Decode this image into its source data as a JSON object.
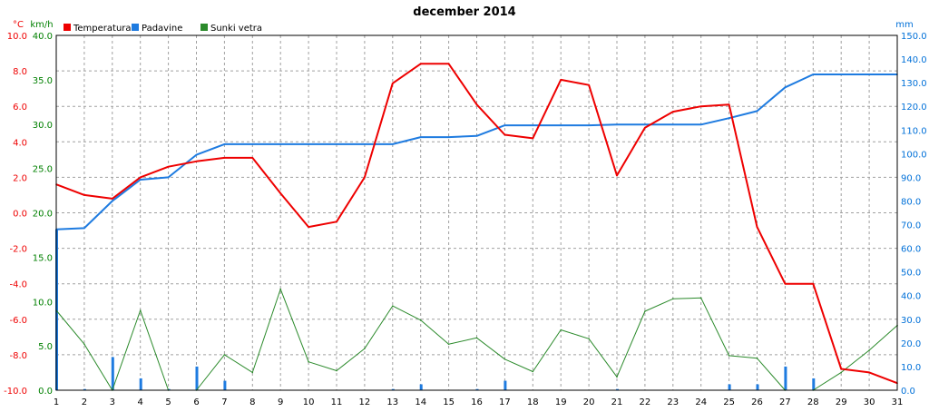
{
  "chart_data": {
    "type": "line",
    "title": "december 2014",
    "x": [
      1,
      2,
      3,
      4,
      5,
      6,
      7,
      8,
      9,
      10,
      11,
      12,
      13,
      14,
      15,
      16,
      17,
      18,
      19,
      20,
      21,
      22,
      23,
      24,
      25,
      26,
      27,
      28,
      29,
      30,
      31
    ],
    "axes": {
      "temperature": {
        "unit": "°C",
        "ylim": [
          -10,
          10
        ],
        "ticks": [
          "10.0",
          "8.0",
          "6.0",
          "4.0",
          "2.0",
          "0.0",
          "-2.0",
          "-4.0",
          "-6.0",
          "-8.0",
          "-10.0"
        ],
        "color": "#ee0000"
      },
      "wind": {
        "unit": "km/h",
        "ylim": [
          0,
          40
        ],
        "ticks": [
          "40.0",
          "35.0",
          "30.0",
          "25.0",
          "20.0",
          "15.0",
          "10.0",
          "5.0",
          "0.0"
        ],
        "color": "#008000"
      },
      "precipitation": {
        "unit": "mm",
        "ylim": [
          0,
          150
        ],
        "ticks": [
          "150.0",
          "140.0",
          "130.0",
          "120.0",
          "110.0",
          "100.0",
          "90.0",
          "80.0",
          "70.0",
          "60.0",
          "50.0",
          "40.0",
          "30.0",
          "20.0",
          "10.0",
          "0.0"
        ],
        "color": "#0070d8"
      }
    },
    "legend": [
      {
        "name": "Temperatura",
        "color": "#ee0000"
      },
      {
        "name": "Padavine",
        "color": "#1e7be0"
      },
      {
        "name": "Sunki vetra",
        "color": "#2b8a2b"
      }
    ],
    "series": [
      {
        "name": "Temperatura",
        "axis": "temperature",
        "color": "#ee0000",
        "values": [
          1.6,
          1.0,
          0.8,
          2.0,
          2.6,
          2.9,
          3.1,
          3.1,
          1.1,
          -0.8,
          -0.5,
          2.0,
          7.3,
          8.4,
          8.4,
          6.1,
          4.4,
          4.2,
          7.5,
          7.2,
          2.1,
          4.8,
          5.7,
          6.0,
          6.1,
          -0.8,
          -4.0,
          -4.0,
          -8.8,
          -9.0,
          -9.6
        ]
      },
      {
        "name": "Padavine",
        "axis": "precipitation",
        "type": "line",
        "color": "#1e7be0",
        "values": [
          68,
          68.5,
          80,
          89,
          90,
          99.5,
          104,
          104,
          104,
          104,
          104,
          104,
          104,
          107,
          107,
          107.5,
          112,
          112,
          112,
          112,
          112.3,
          112.3,
          112.3,
          112.3,
          115,
          118,
          128,
          133.5,
          133.5,
          133.5,
          133.5
        ]
      },
      {
        "name": "Padavine",
        "axis": "precipitation",
        "type": "bar",
        "color": "#1e7be0",
        "values": [
          68,
          0.5,
          14,
          5,
          0.5,
          10,
          4,
          0,
          0,
          0,
          0,
          0,
          0.5,
          2.5,
          0,
          0.5,
          4,
          0,
          0,
          0,
          0.5,
          0,
          0,
          0,
          2.5,
          2.5,
          10,
          5,
          0,
          0,
          0
        ]
      },
      {
        "name": "Sunki vetra",
        "axis": "wind",
        "color": "#2b8a2b",
        "values": [
          9,
          5.2,
          0,
          9,
          0,
          0,
          4,
          2,
          11.4,
          3.2,
          2.2,
          4.7,
          9.5,
          7.9,
          5.2,
          5.9,
          3.5,
          2.1,
          6.8,
          5.8,
          1.5,
          8.9,
          10.3,
          10.4,
          3.9,
          3.6,
          0,
          0,
          2,
          4.5,
          7.3
        ]
      }
    ]
  }
}
